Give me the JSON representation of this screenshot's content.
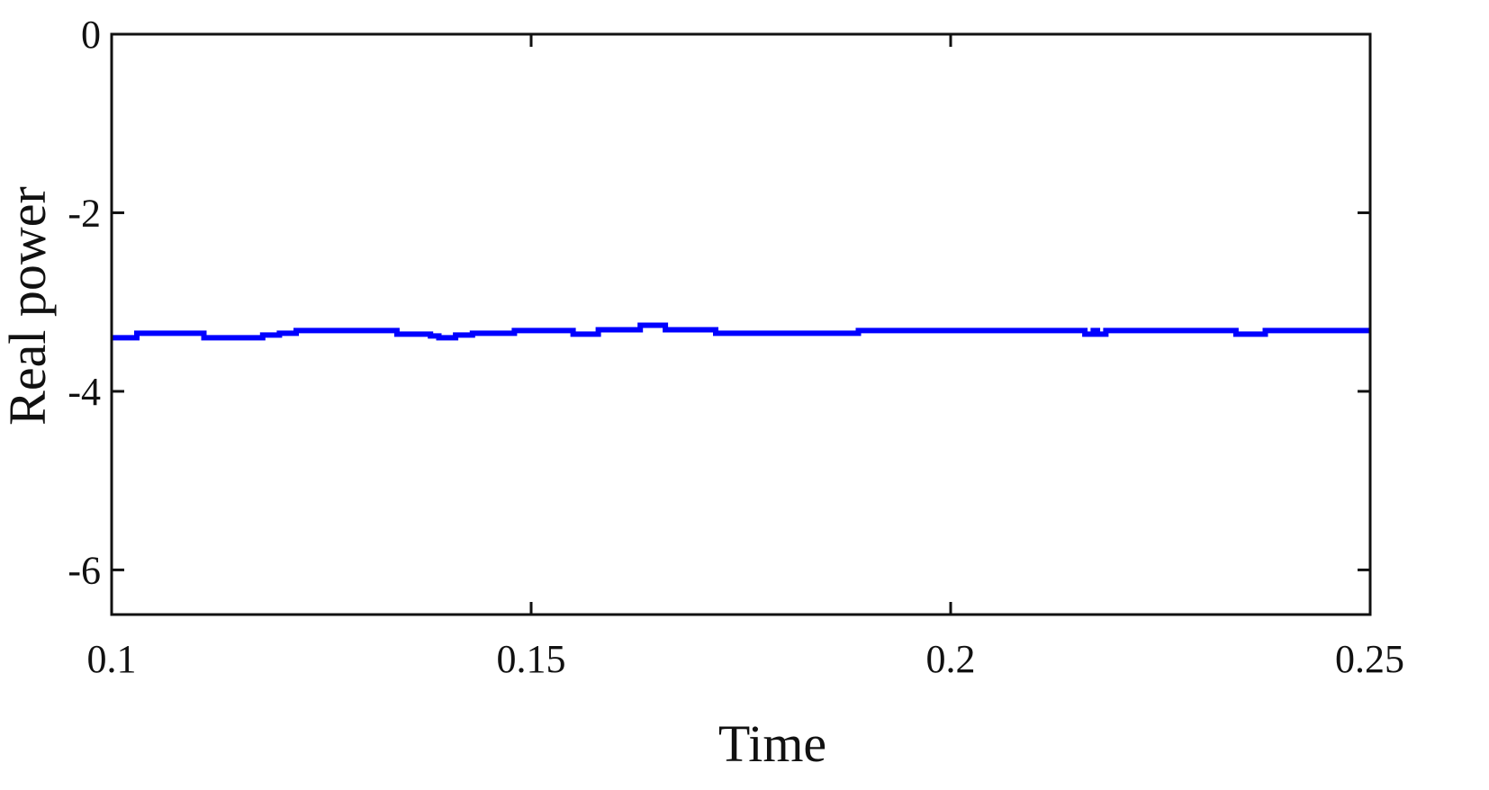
{
  "chart_data": {
    "type": "line",
    "title": "",
    "xlabel": "Time",
    "ylabel": "Real power",
    "xlim": [
      0.1,
      0.25
    ],
    "ylim": [
      -6.5,
      0
    ],
    "xticks": [
      0.1,
      0.15,
      0.2,
      0.25
    ],
    "xtick_labels": [
      "0.1",
      "0.15",
      "0.2",
      "0.25"
    ],
    "yticks": [
      0,
      -2,
      -4,
      -6
    ],
    "ytick_labels": [
      "0",
      "-2",
      "-4",
      "-6"
    ],
    "grid": false,
    "series": [
      {
        "color": "#0000ff",
        "x": [
          0.1,
          0.103,
          0.103,
          0.111,
          0.111,
          0.118,
          0.118,
          0.12,
          0.12,
          0.122,
          0.122,
          0.134,
          0.134,
          0.138,
          0.138,
          0.139,
          0.139,
          0.141,
          0.141,
          0.143,
          0.143,
          0.148,
          0.148,
          0.155,
          0.155,
          0.158,
          0.158,
          0.163,
          0.163,
          0.166,
          0.166,
          0.172,
          0.172,
          0.189,
          0.189,
          0.216,
          0.216,
          0.217,
          0.217,
          0.2175,
          0.2175,
          0.2185,
          0.2185,
          0.234,
          0.234,
          0.2375,
          0.2375,
          0.25
        ],
        "y": [
          -3.4,
          -3.4,
          -3.35,
          -3.35,
          -3.4,
          -3.4,
          -3.37,
          -3.37,
          -3.35,
          -3.35,
          -3.32,
          -3.32,
          -3.36,
          -3.36,
          -3.38,
          -3.38,
          -3.4,
          -3.4,
          -3.37,
          -3.37,
          -3.35,
          -3.35,
          -3.32,
          -3.32,
          -3.36,
          -3.36,
          -3.31,
          -3.31,
          -3.26,
          -3.26,
          -3.31,
          -3.31,
          -3.35,
          -3.35,
          -3.32,
          -3.32,
          -3.36,
          -3.36,
          -3.32,
          -3.32,
          -3.36,
          -3.36,
          -3.32,
          -3.32,
          -3.36,
          -3.36,
          -3.32,
          -3.32
        ]
      }
    ]
  },
  "colors": {
    "line": "#0000ff",
    "axes": "#111111",
    "background": "#ffffff"
  }
}
